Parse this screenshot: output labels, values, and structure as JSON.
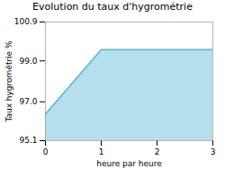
{
  "chart_data": {
    "type": "area",
    "title": "Evolution du taux d'hygrométrie",
    "xlabel": "heure par heure",
    "ylabel": "Taux hygrométrie %",
    "x": [
      0,
      1,
      2,
      3
    ],
    "values": [
      96.4,
      99.55,
      99.55,
      99.55
    ],
    "color": "#5bb8d4",
    "xlim": [
      0,
      3
    ],
    "ylim": [
      95.1,
      100.9
    ],
    "xticks": [
      0,
      1,
      2,
      3
    ],
    "yticks": [
      95.1,
      {
        "value": 97.0,
        "label": "97.0"
      },
      {
        "value": 99.0,
        "label": "99.0"
      },
      100.9
    ],
    "grid": false
  }
}
